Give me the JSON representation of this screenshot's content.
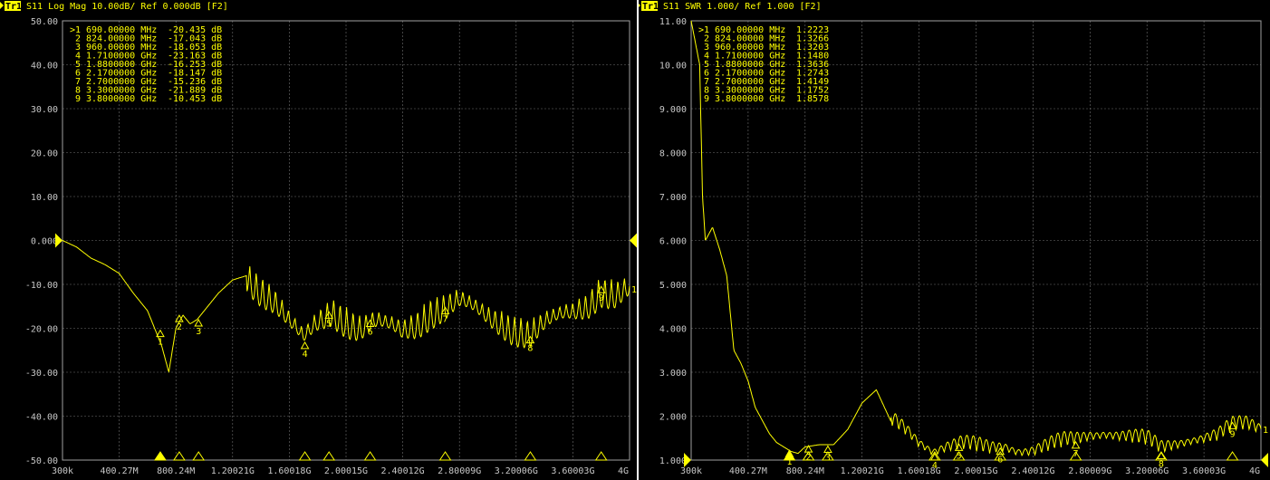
{
  "chart_data": [
    {
      "type": "line",
      "title": "S11 Log Mag 10.00dB/ Ref 0.000dB [F2]",
      "trace_badge": "Tr1",
      "trace_color": "#ffff00",
      "ylim": [
        -50,
        50
      ],
      "ref_value": 0,
      "y_ticks": [
        "50.00",
        "40.00",
        "30.00",
        "20.00",
        "10.00",
        "0.000",
        "-10.00",
        "-20.00",
        "-30.00",
        "-40.00",
        "-50.00"
      ],
      "x_ticks": [
        "300k",
        "400.27M",
        "800.24M",
        "1.20021G",
        "1.60018G",
        "2.00015G",
        "2.40012G",
        "2.80009G",
        "3.20006G",
        "3.60003G",
        "4G"
      ],
      "xlim_mhz": [
        0.3,
        4000
      ],
      "grid": true,
      "markers": [
        {
          "id": "1",
          "freq_mhz": 690,
          "freq": "690.00000 MHz",
          "value": -20.435,
          "value_text": "-20.435 dB"
        },
        {
          "id": "2",
          "freq_mhz": 824,
          "freq": "824.00000 MHz",
          "value": -17.043,
          "value_text": "-17.043 dB"
        },
        {
          "id": "3",
          "freq_mhz": 960,
          "freq": "960.00000 MHz",
          "value": -18.053,
          "value_text": "-18.053 dB"
        },
        {
          "id": "4",
          "freq_mhz": 1710,
          "freq": "1.7100000 GHz",
          "value": -23.163,
          "value_text": "-23.163 dB"
        },
        {
          "id": "5",
          "freq_mhz": 1880,
          "freq": "1.8800000 GHz",
          "value": -16.253,
          "value_text": "-16.253 dB"
        },
        {
          "id": "6",
          "freq_mhz": 2170,
          "freq": "2.1700000 GHz",
          "value": -18.147,
          "value_text": "-18.147 dB"
        },
        {
          "id": "7",
          "freq_mhz": 2700,
          "freq": "2.7000000 GHz",
          "value": -15.236,
          "value_text": "-15.236 dB"
        },
        {
          "id": "8",
          "freq_mhz": 3300,
          "freq": "3.3000000 GHz",
          "value": -21.889,
          "value_text": "-21.889 dB"
        },
        {
          "id": "9",
          "freq_mhz": 3800,
          "freq": "3.8000000 GHz",
          "value": -10.453,
          "value_text": "-10.453 dB"
        }
      ],
      "active_marker_prefix": ">",
      "series": [
        {
          "x_mhz": [
            0.3,
            100,
            200,
            300,
            400,
            500,
            600,
            650,
            700,
            750,
            800,
            850,
            900,
            950,
            1000,
            1100,
            1200,
            1300,
            1400,
            1500,
            1600,
            1700,
            1800,
            1900,
            2000,
            2100,
            2200,
            2300,
            2400,
            2500,
            2600,
            2700,
            2800,
            2900,
            3000,
            3100,
            3200,
            3300,
            3400,
            3500,
            3600,
            3700,
            3800,
            3900,
            4000
          ],
          "y": [
            0,
            -1.5,
            -4,
            -5.5,
            -7.5,
            -12,
            -16,
            -20,
            -24,
            -30,
            -20,
            -17,
            -19,
            -18,
            -16,
            -12,
            -9,
            -8,
            -11,
            -14,
            -19,
            -23,
            -19,
            -16,
            -18,
            -20,
            -19,
            -20,
            -21,
            -19,
            -16,
            -15,
            -14,
            -16,
            -18,
            -19,
            -20,
            -21,
            -19,
            -18,
            -17,
            -15,
            -11,
            -12,
            -11
          ],
          "ripple_start_mhz": 1300
        }
      ]
    },
    {
      "type": "line",
      "title": "S11 SWR 1.000/ Ref 1.000 [F2]",
      "trace_badge": "Tr1",
      "trace_color": "#ffff00",
      "ylim": [
        1,
        11
      ],
      "ref_value": 1,
      "y_ticks": [
        "11.00",
        "10.00",
        "9.000",
        "8.000",
        "7.000",
        "6.000",
        "5.000",
        "4.000",
        "3.000",
        "2.000",
        "1.000"
      ],
      "x_ticks": [
        "300k",
        "400.27M",
        "800.24M",
        "1.20021G",
        "1.60018G",
        "2.00015G",
        "2.40012G",
        "2.80009G",
        "3.20006G",
        "3.60003G",
        "4G"
      ],
      "xlim_mhz": [
        0.3,
        4000
      ],
      "grid": true,
      "markers": [
        {
          "id": "1",
          "freq_mhz": 690,
          "freq": "690.00000 MHz",
          "value": 1.2223,
          "value_text": "1.2223"
        },
        {
          "id": "2",
          "freq_mhz": 824,
          "freq": "824.00000 MHz",
          "value": 1.3266,
          "value_text": "1.3266"
        },
        {
          "id": "3",
          "freq_mhz": 960,
          "freq": "960.00000 MHz",
          "value": 1.3203,
          "value_text": "1.3203"
        },
        {
          "id": "4",
          "freq_mhz": 1710,
          "freq": "1.7100000 GHz",
          "value": 1.148,
          "value_text": "1.1480"
        },
        {
          "id": "5",
          "freq_mhz": 1880,
          "freq": "1.8800000 GHz",
          "value": 1.3636,
          "value_text": "1.3636"
        },
        {
          "id": "6",
          "freq_mhz": 2170,
          "freq": "2.1700000 GHz",
          "value": 1.2743,
          "value_text": "1.2743"
        },
        {
          "id": "7",
          "freq_mhz": 2700,
          "freq": "2.7000000 GHz",
          "value": 1.4149,
          "value_text": "1.4149"
        },
        {
          "id": "8",
          "freq_mhz": 3300,
          "freq": "3.3000000 GHz",
          "value": 1.1752,
          "value_text": "1.1752"
        },
        {
          "id": "9",
          "freq_mhz": 3800,
          "freq": "3.8000000 GHz",
          "value": 1.8578,
          "value_text": "1.8578"
        }
      ],
      "active_marker_prefix": ">",
      "series": [
        {
          "x_mhz": [
            0.3,
            60,
            80,
            100,
            150,
            200,
            250,
            300,
            350,
            400,
            450,
            500,
            550,
            600,
            650,
            700,
            750,
            800,
            900,
            1000,
            1100,
            1200,
            1300,
            1400,
            1500,
            1600,
            1700,
            1800,
            1900,
            2000,
            2100,
            2200,
            2300,
            2400,
            2500,
            2600,
            2700,
            2800,
            2900,
            3000,
            3100,
            3200,
            3300,
            3400,
            3500,
            3600,
            3700,
            3800,
            3900,
            4000
          ],
          "y": [
            11,
            10,
            7,
            6,
            6.3,
            5.8,
            5.2,
            3.5,
            3.2,
            2.8,
            2.2,
            1.9,
            1.6,
            1.4,
            1.3,
            1.2,
            1.15,
            1.3,
            1.35,
            1.35,
            1.7,
            2.3,
            2.6,
            1.9,
            1.7,
            1.4,
            1.2,
            1.3,
            1.35,
            1.3,
            1.25,
            1.3,
            1.2,
            1.2,
            1.3,
            1.4,
            1.45,
            1.55,
            1.6,
            1.55,
            1.5,
            1.45,
            1.25,
            1.35,
            1.45,
            1.5,
            1.55,
            1.75,
            1.8,
            1.7
          ],
          "ripple_start_mhz": 1400
        }
      ]
    }
  ]
}
